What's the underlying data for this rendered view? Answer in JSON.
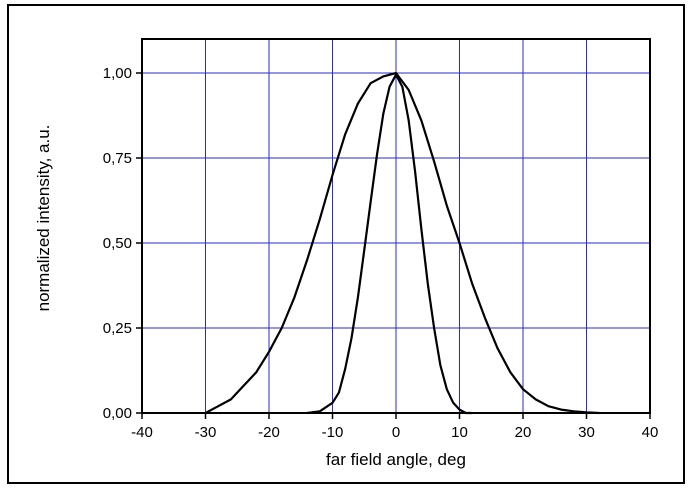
{
  "chart_data": {
    "type": "line",
    "title": "",
    "xlabel": "far field angle, deg",
    "ylabel": "normalized intensity, a.u.",
    "xlim": [
      -40,
      40
    ],
    "ylim": [
      0,
      1.1
    ],
    "x_ticks": [
      -40,
      -30,
      -20,
      -10,
      0,
      10,
      20,
      30,
      40
    ],
    "x_tick_labels": [
      "-40",
      "-30",
      "-20",
      "-10",
      "0",
      "10",
      "20",
      "30",
      "40"
    ],
    "y_ticks": [
      0,
      0.25,
      0.5,
      0.75,
      1.0
    ],
    "y_tick_labels": [
      "0,00",
      "0,25",
      "0,50",
      "0,75",
      "1,00"
    ],
    "grid": true,
    "grid_color": "#2a2ad8",
    "line_color": "#000000",
    "series": [
      {
        "x": [
          -30,
          -28,
          -26,
          -24,
          -22,
          -20,
          -18,
          -16,
          -14,
          -12,
          -10,
          -8,
          -6,
          -4,
          -2,
          0,
          2,
          4,
          6,
          8,
          10,
          12,
          14,
          16,
          18,
          20,
          22,
          24,
          26,
          28,
          30,
          32
        ],
        "y": [
          0.0,
          0.02,
          0.04,
          0.08,
          0.12,
          0.18,
          0.25,
          0.34,
          0.45,
          0.57,
          0.7,
          0.82,
          0.91,
          0.97,
          0.99,
          1.0,
          0.95,
          0.86,
          0.74,
          0.61,
          0.5,
          0.38,
          0.28,
          0.19,
          0.12,
          0.07,
          0.04,
          0.02,
          0.01,
          0.005,
          0.002,
          0.0
        ]
      },
      {
        "x": [
          -14,
          -12,
          -10,
          -9,
          -8,
          -7,
          -6,
          -5,
          -4,
          -3,
          -2,
          -1,
          0,
          1,
          2,
          3,
          4,
          5,
          6,
          7,
          8,
          9,
          10,
          11,
          12
        ],
        "y": [
          0.0,
          0.005,
          0.03,
          0.06,
          0.13,
          0.22,
          0.34,
          0.48,
          0.62,
          0.76,
          0.88,
          0.96,
          0.995,
          0.96,
          0.86,
          0.71,
          0.54,
          0.38,
          0.25,
          0.14,
          0.07,
          0.03,
          0.01,
          0.0,
          0.0
        ]
      }
    ]
  }
}
